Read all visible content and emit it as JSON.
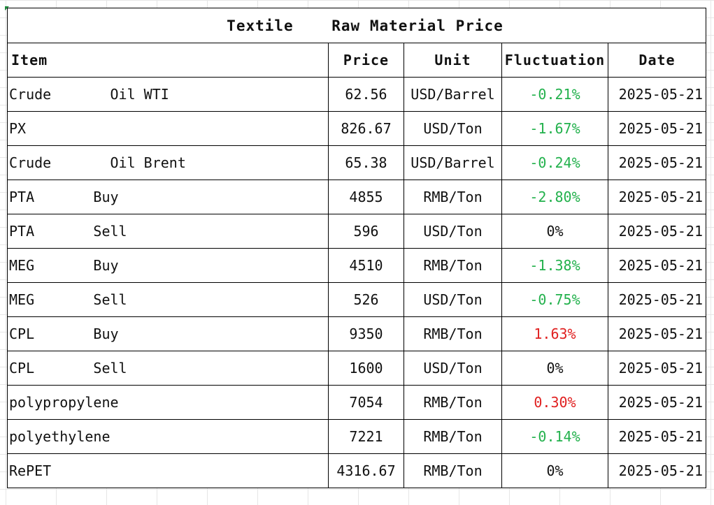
{
  "title": "Textile    Raw Material Price",
  "headers": {
    "item": "Item",
    "price": "Price",
    "unit": "Unit",
    "fluctuation": "Fluctuation",
    "date": "Date"
  },
  "colors": {
    "down": "#22b14c",
    "up": "#e02020",
    "flat": "#111111"
  },
  "rows": [
    {
      "item": "Crude       Oil WTI",
      "price": "62.56",
      "unit": "USD/Barrel",
      "fluctuation": "-0.21%",
      "direction": "down",
      "date": "2025-05-21"
    },
    {
      "item": "PX",
      "price": "826.67",
      "unit": "USD/Ton",
      "fluctuation": "-1.67%",
      "direction": "down",
      "date": "2025-05-21"
    },
    {
      "item": "Crude       Oil Brent",
      "price": "65.38",
      "unit": "USD/Barrel",
      "fluctuation": "-0.24%",
      "direction": "down",
      "date": "2025-05-21"
    },
    {
      "item": "PTA       Buy",
      "price": "4855",
      "unit": "RMB/Ton",
      "fluctuation": "-2.80%",
      "direction": "down",
      "date": "2025-05-21"
    },
    {
      "item": "PTA       Sell",
      "price": "596",
      "unit": "USD/Ton",
      "fluctuation": "0%",
      "direction": "flat",
      "date": "2025-05-21"
    },
    {
      "item": "MEG       Buy",
      "price": "4510",
      "unit": "RMB/Ton",
      "fluctuation": "-1.38%",
      "direction": "down",
      "date": "2025-05-21"
    },
    {
      "item": "MEG       Sell",
      "price": "526",
      "unit": "USD/Ton",
      "fluctuation": "-0.75%",
      "direction": "down",
      "date": "2025-05-21"
    },
    {
      "item": "CPL       Buy",
      "price": "9350",
      "unit": "RMB/Ton",
      "fluctuation": "1.63%",
      "direction": "up",
      "date": "2025-05-21"
    },
    {
      "item": "CPL       Sell",
      "price": "1600",
      "unit": "USD/Ton",
      "fluctuation": "0%",
      "direction": "flat",
      "date": "2025-05-21"
    },
    {
      "item": "polypropylene",
      "price": "7054",
      "unit": "RMB/Ton",
      "fluctuation": "0.30%",
      "direction": "up",
      "date": "2025-05-21"
    },
    {
      "item": "polyethylene",
      "price": "7221",
      "unit": "RMB/Ton",
      "fluctuation": "-0.14%",
      "direction": "down",
      "date": "2025-05-21"
    },
    {
      "item": "RePET",
      "price": "4316.67",
      "unit": "RMB/Ton",
      "fluctuation": "0%",
      "direction": "flat",
      "date": "2025-05-21"
    }
  ]
}
